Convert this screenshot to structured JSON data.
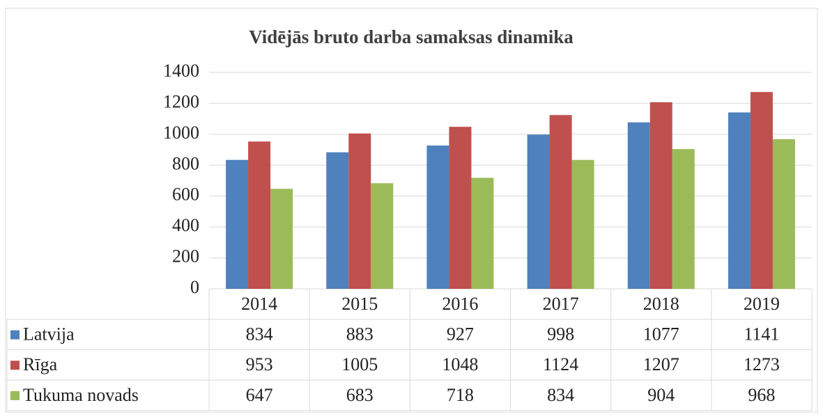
{
  "chart_data": {
    "type": "bar",
    "title": "Vidējās bruto darba samaksas dinamika",
    "categories": [
      "2014",
      "2015",
      "2016",
      "2017",
      "2018",
      "2019"
    ],
    "series": [
      {
        "name": "Latvija",
        "color": "#4f81bd",
        "values": [
          834,
          883,
          927,
          998,
          1077,
          1141
        ]
      },
      {
        "name": "Rīga",
        "color": "#c0504d",
        "values": [
          953,
          1005,
          1048,
          1124,
          1207,
          1273
        ]
      },
      {
        "name": "Tukuma novads",
        "color": "#9bbb59",
        "values": [
          647,
          683,
          718,
          834,
          904,
          968
        ]
      }
    ],
    "ylim": [
      0,
      1400
    ],
    "yticks": [
      0,
      200,
      400,
      600,
      800,
      1000,
      1200,
      1400
    ],
    "grid": true,
    "data_table": true
  }
}
